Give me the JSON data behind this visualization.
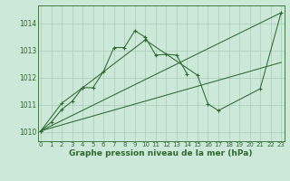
{
  "bg_color": "#cce8d8",
  "line_color": "#2d6a2d",
  "grid_color": "#a8ccb8",
  "xlabel": "Graphe pression niveau de la mer (hPa)",
  "xlabel_fontsize": 6.5,
  "yticks": [
    1010,
    1011,
    1012,
    1013,
    1014
  ],
  "ylim": [
    1009.65,
    1014.65
  ],
  "xlim": [
    -0.3,
    23.3
  ],
  "line1_x": [
    0,
    1,
    2,
    3,
    4,
    5,
    6,
    7,
    8,
    9,
    10,
    11,
    12,
    13,
    14
  ],
  "line1_y": [
    1010.03,
    1010.35,
    1010.82,
    1011.12,
    1011.62,
    1011.62,
    1012.22,
    1013.1,
    1013.1,
    1013.72,
    1013.48,
    1012.82,
    1012.85,
    1012.82,
    1012.12
  ],
  "line2_x": [
    0,
    2,
    4,
    10,
    15,
    16,
    17,
    21,
    23
  ],
  "line2_y": [
    1010.03,
    1011.05,
    1011.62,
    1013.38,
    1012.08,
    1011.02,
    1010.78,
    1011.58,
    1014.38
  ],
  "refline1_x": [
    0,
    23
  ],
  "refline1_y": [
    1010.03,
    1014.38
  ],
  "refline2_x": [
    0,
    23
  ],
  "refline2_y": [
    1010.03,
    1012.55
  ]
}
